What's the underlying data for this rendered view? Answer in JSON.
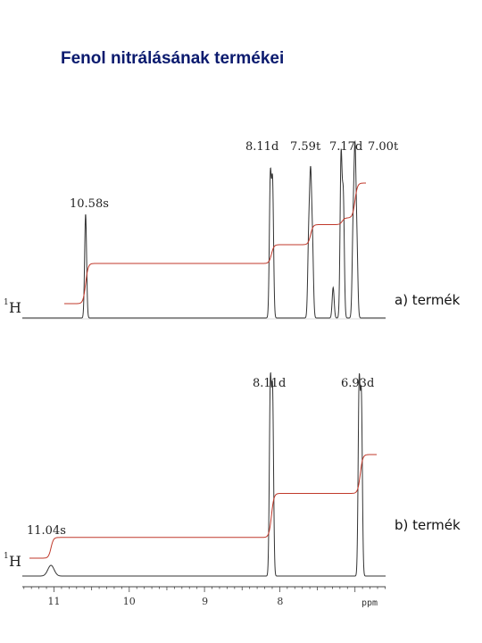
{
  "title": "Fenol nitrálásának termékei",
  "colors": {
    "spectrum": "#333333",
    "integral": "#c0392b",
    "title": "#0a1a6e"
  },
  "chart_data": [
    {
      "type": "line",
      "panel": "a",
      "product_label": "a) termék",
      "nucleus": {
        "sup": "1",
        "symbol": "H"
      },
      "peak_labels": [
        "10.58s",
        "8.11d",
        "7.59t",
        "7.17d",
        "7.00t"
      ],
      "peaks": [
        {
          "ppm": 10.58,
          "height": 0.75
        },
        {
          "ppm": 8.125,
          "height": 1.0
        },
        {
          "ppm": 8.095,
          "height": 0.95
        },
        {
          "ppm": 7.615,
          "height": 0.55
        },
        {
          "ppm": 7.59,
          "height": 0.93
        },
        {
          "ppm": 7.565,
          "height": 0.5
        },
        {
          "ppm": 7.29,
          "height": 0.22
        },
        {
          "ppm": 7.185,
          "height": 1.15
        },
        {
          "ppm": 7.155,
          "height": 0.85
        },
        {
          "ppm": 7.025,
          "height": 0.6
        },
        {
          "ppm": 7.0,
          "height": 1.1
        },
        {
          "ppm": 6.975,
          "height": 0.5
        }
      ],
      "integral_steps": [
        {
          "ppm": 10.58,
          "level": 0.3
        },
        {
          "ppm": 8.11,
          "level": 0.44
        },
        {
          "ppm": 7.59,
          "level": 0.59
        },
        {
          "ppm": 7.17,
          "level": 0.64
        },
        {
          "ppm": 7.0,
          "level": 0.9
        }
      ],
      "integral_range": [
        10.9,
        6.5
      ],
      "xlim": [
        11.4,
        6.6
      ]
    },
    {
      "type": "line",
      "panel": "b",
      "product_label": "b) termék",
      "nucleus": {
        "sup": "1",
        "symbol": "H"
      },
      "peak_labels": [
        "11.04s",
        "8.11d",
        "6.93d"
      ],
      "peaks": [
        {
          "ppm": 11.04,
          "height": 0.06,
          "broad": true
        },
        {
          "ppm": 8.125,
          "height": 1.0
        },
        {
          "ppm": 8.095,
          "height": 0.95
        },
        {
          "ppm": 6.945,
          "height": 1.0
        },
        {
          "ppm": 6.915,
          "height": 0.92
        }
      ],
      "integral_steps": [
        {
          "ppm": 11.04,
          "level": 0.16
        },
        {
          "ppm": 8.11,
          "level": 0.5
        },
        {
          "ppm": 6.93,
          "level": 0.8
        }
      ],
      "integral_range": [
        11.35,
        6.6
      ],
      "xlim": [
        11.4,
        6.6
      ]
    }
  ],
  "axis": {
    "ticks": [
      "11",
      "10",
      "9",
      "8"
    ],
    "tick_values": [
      11,
      10,
      9,
      8
    ],
    "unit": "ppm",
    "xlim": [
      11.4,
      6.6
    ]
  }
}
